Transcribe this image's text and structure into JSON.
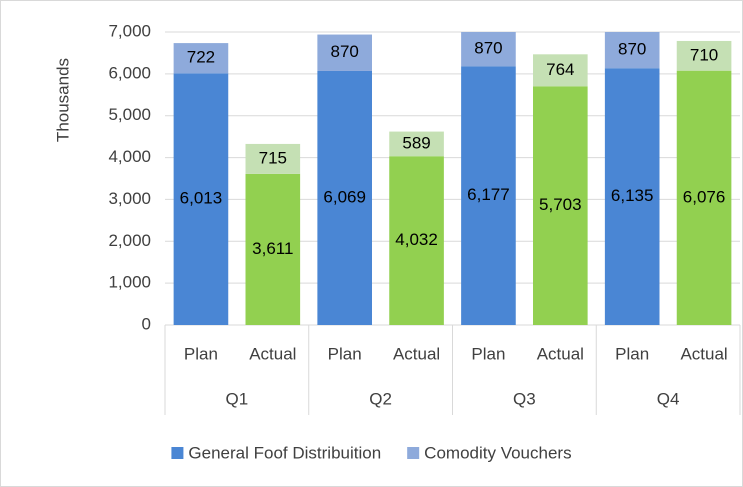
{
  "chart_data": {
    "type": "stacked_bar",
    "y_label": "Thousands",
    "categories": [
      "Plan",
      "Actual",
      "Plan",
      "Actual",
      "Plan",
      "Actual",
      "Plan",
      "Actual"
    ],
    "groups": [
      "Q1",
      "Q2",
      "Q3",
      "Q4"
    ],
    "series": [
      {
        "name": "General Foof Distribuition",
        "color": "#4a86d4",
        "colors": [
          "#4a86d4",
          "#92d050",
          "#4a86d4",
          "#92d050",
          "#4a86d4",
          "#92d050",
          "#4a86d4",
          "#92d050"
        ],
        "values": [
          6013,
          3611,
          6069,
          4032,
          6177,
          5703,
          6135,
          6076
        ],
        "value_labels": [
          "6,013",
          "3,611",
          "6,069",
          "4,032",
          "6,177",
          "5,703",
          "6,135",
          "6,076"
        ]
      },
      {
        "name": "Comodity Vouchers",
        "color": "#8eaadb",
        "colors": [
          "#8eaadb",
          "#c5e0b4",
          "#8eaadb",
          "#c5e0b4",
          "#8eaadb",
          "#c5e0b4",
          "#8eaadb",
          "#c5e0b4"
        ],
        "values": [
          722,
          715,
          870,
          589,
          870,
          764,
          870,
          710
        ]
      }
    ],
    "ylim": [
      0,
      7000
    ],
    "yticks": [
      0,
      {
        "value": 1000,
        "label": "1,000"
      },
      {
        "value": 2000,
        "label": "2,000"
      },
      {
        "value": 3000,
        "label": "3,000"
      },
      {
        "value": 4000,
        "label": "4,000"
      },
      {
        "value": 5000,
        "label": "5,000"
      },
      {
        "value": 6000,
        "label": "6,000"
      },
      {
        "value": 7000,
        "label": "7,000"
      }
    ],
    "grid": true
  }
}
